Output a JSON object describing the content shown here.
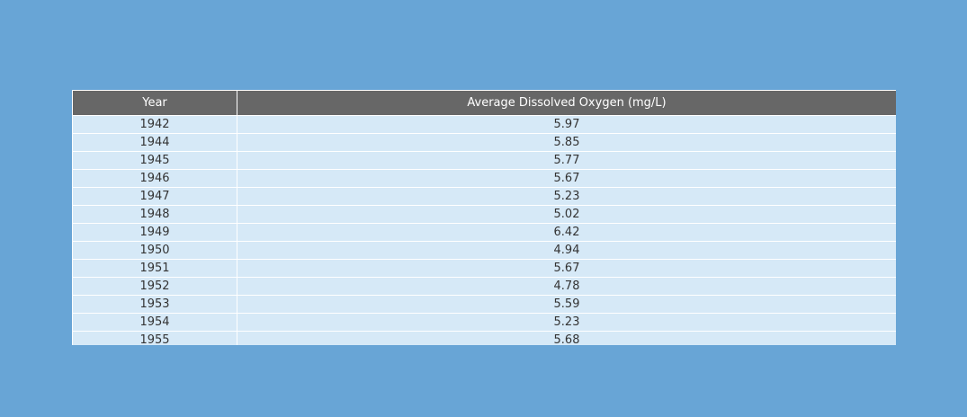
{
  "chart_data": {
    "type": "table",
    "columns": [
      "Year",
      "Average Dissolved Oxygen (mg/L)"
    ],
    "rows": [
      [
        "1942",
        "5.97"
      ],
      [
        "1944",
        "5.85"
      ],
      [
        "1945",
        "5.77"
      ],
      [
        "1946",
        "5.67"
      ],
      [
        "1947",
        "5.23"
      ],
      [
        "1948",
        "5.02"
      ],
      [
        "1949",
        "6.42"
      ],
      [
        "1950",
        "4.94"
      ],
      [
        "1951",
        "5.67"
      ],
      [
        "1952",
        "4.78"
      ],
      [
        "1953",
        "5.59"
      ],
      [
        "1954",
        "5.23"
      ],
      [
        "1955",
        "5.68"
      ]
    ]
  },
  "colors": {
    "background": "#68a5d6",
    "header_fill": "#676767",
    "cell_fill": "#d6e9f7",
    "grid_line": "#ffffff"
  }
}
